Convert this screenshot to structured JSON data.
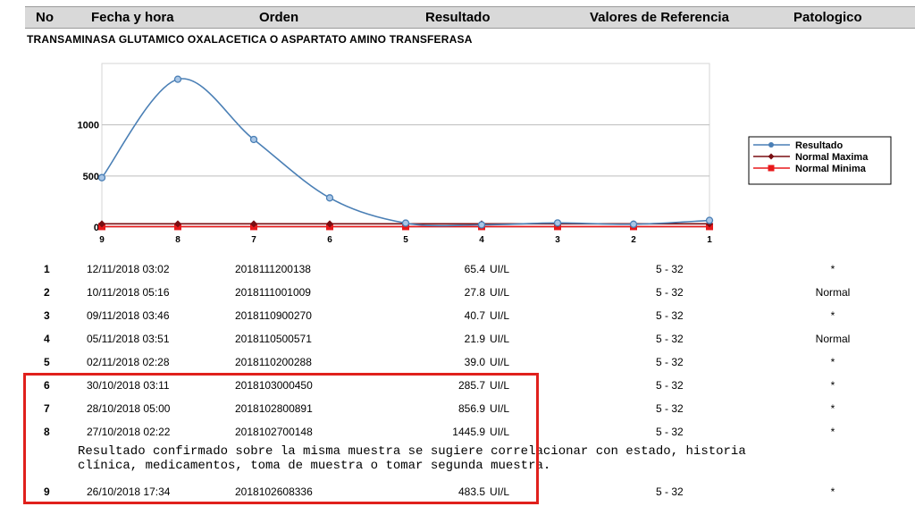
{
  "header": {
    "no": "No",
    "fecha": "Fecha y hora",
    "orden": "Orden",
    "resultado": "Resultado",
    "referencia": "Valores de Referencia",
    "patologico": "Patologico"
  },
  "test_name": "TRANSAMINASA GLUTAMICO OXALACETICA O ASPARTATO AMINO TRANSFERASA",
  "chart_data": {
    "type": "line",
    "categories": [
      "9",
      "8",
      "7",
      "6",
      "5",
      "4",
      "3",
      "2",
      "1"
    ],
    "series": [
      {
        "name": "Resultado",
        "values": [
          483.5,
          1445.9,
          856.9,
          285.7,
          39.0,
          21.9,
          40.7,
          27.8,
          65.4
        ],
        "color": "#4a7fb5",
        "marker": "circle"
      },
      {
        "name": "Normal Maxima",
        "values": [
          32,
          32,
          32,
          32,
          32,
          32,
          32,
          32,
          32
        ],
        "color": "#7a0e12",
        "marker": "diamond"
      },
      {
        "name": "Normal Minima",
        "values": [
          5,
          5,
          5,
          5,
          5,
          5,
          5,
          5,
          5
        ],
        "color": "#e8191b",
        "marker": "square"
      }
    ],
    "yticks": [
      "0",
      "500",
      "1000"
    ],
    "ylim": [
      0,
      1600
    ],
    "grid": true,
    "legend": "right"
  },
  "rows": [
    {
      "no": "1",
      "fecha": "12/11/2018 03:02",
      "orden": "2018111200138",
      "resultado": "65.4",
      "unidad": "UI/L",
      "referencia": "5 - 32",
      "patologico": "*"
    },
    {
      "no": "2",
      "fecha": "10/11/2018 05:16",
      "orden": "2018111001009",
      "resultado": "27.8",
      "unidad": "UI/L",
      "referencia": "5 - 32",
      "patologico": "Normal"
    },
    {
      "no": "3",
      "fecha": "09/11/2018 03:46",
      "orden": "2018110900270",
      "resultado": "40.7",
      "unidad": "UI/L",
      "referencia": "5 - 32",
      "patologico": "*"
    },
    {
      "no": "4",
      "fecha": "05/11/2018 03:51",
      "orden": "2018110500571",
      "resultado": "21.9",
      "unidad": "UI/L",
      "referencia": "5 - 32",
      "patologico": "Normal"
    },
    {
      "no": "5",
      "fecha": "02/11/2018 02:28",
      "orden": "2018110200288",
      "resultado": "39.0",
      "unidad": "UI/L",
      "referencia": "5 - 32",
      "patologico": "*"
    },
    {
      "no": "6",
      "fecha": "30/10/2018 03:11",
      "orden": "2018103000450",
      "resultado": "285.7",
      "unidad": "UI/L",
      "referencia": "5 - 32",
      "patologico": "*"
    },
    {
      "no": "7",
      "fecha": "28/10/2018 05:00",
      "orden": "2018102800891",
      "resultado": "856.9",
      "unidad": "UI/L",
      "referencia": "5 - 32",
      "patologico": "*"
    },
    {
      "no": "8",
      "fecha": "27/10/2018 02:22",
      "orden": "2018102700148",
      "resultado": "1445.9",
      "unidad": "UI/L",
      "referencia": "5 - 32",
      "patologico": "*"
    },
    {
      "no": "9",
      "fecha": "26/10/2018 17:34",
      "orden": "2018102608336",
      "resultado": "483.5",
      "unidad": "UI/L",
      "referencia": "5 - 32",
      "patologico": "*"
    }
  ],
  "comment": "Resultado confirmado sobre la misma muestra se sugiere correlacionar con estado, historia\nclínica, medicamentos, toma de muestra o tomar segunda muestra."
}
